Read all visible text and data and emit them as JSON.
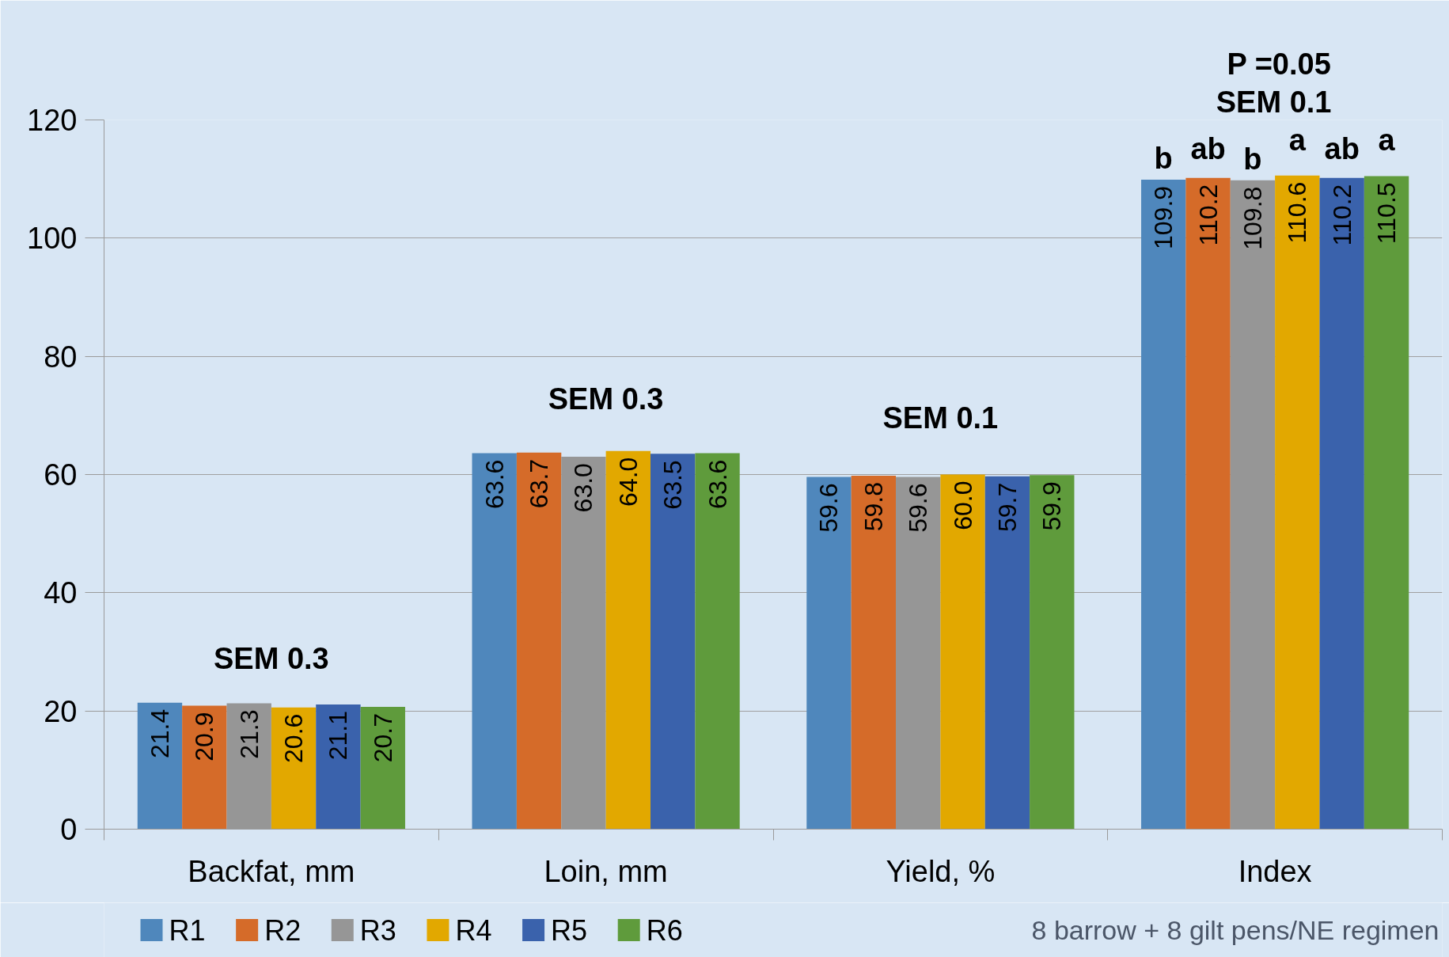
{
  "chart_data": {
    "type": "bar",
    "categories": [
      "Backfat, mm",
      "Loin, mm",
      "Yield, %",
      "Index"
    ],
    "series": [
      {
        "name": "R1",
        "color": "#4f87bc",
        "values": [
          21.4,
          63.6,
          59.6,
          109.9
        ],
        "value_labels": [
          "21.4",
          "63.6",
          "59.6",
          "109.9"
        ]
      },
      {
        "name": "R2",
        "color": "#d56b29",
        "values": [
          20.9,
          63.7,
          59.8,
          110.2
        ],
        "value_labels": [
          "20.9",
          "63.7",
          "59.8",
          "110.2"
        ]
      },
      {
        "name": "R3",
        "color": "#969696",
        "values": [
          21.3,
          63.0,
          59.6,
          109.8
        ],
        "value_labels": [
          "21.3",
          "63.0",
          "59.6",
          "109.8"
        ]
      },
      {
        "name": "R4",
        "color": "#e2a800",
        "values": [
          20.6,
          64.0,
          60.0,
          110.6
        ],
        "value_labels": [
          "20.6",
          "64.0",
          "60.0",
          "110.6"
        ]
      },
      {
        "name": "R5",
        "color": "#3a62ac",
        "values": [
          21.1,
          63.5,
          59.7,
          110.2
        ],
        "value_labels": [
          "21.1",
          "63.5",
          "59.7",
          "110.2"
        ]
      },
      {
        "name": "R6",
        "color": "#5f9b3c",
        "values": [
          20.7,
          63.6,
          59.9,
          110.5
        ],
        "value_labels": [
          "20.7",
          "63.6",
          "59.9",
          "110.5"
        ]
      }
    ],
    "ylim": [
      0,
      120
    ],
    "yticks": [
      0,
      20,
      40,
      60,
      80,
      100,
      120
    ],
    "grid": "y",
    "legend": "bottom",
    "annotations": [
      "SEM 0.3",
      "SEM 0.3",
      "SEM 0.1",
      "P =0.05",
      "SEM 0.1",
      "b",
      "ab",
      "b",
      "a",
      "ab",
      "a",
      "8 barrow + 8 gilt pens/NE regimen"
    ]
  }
}
